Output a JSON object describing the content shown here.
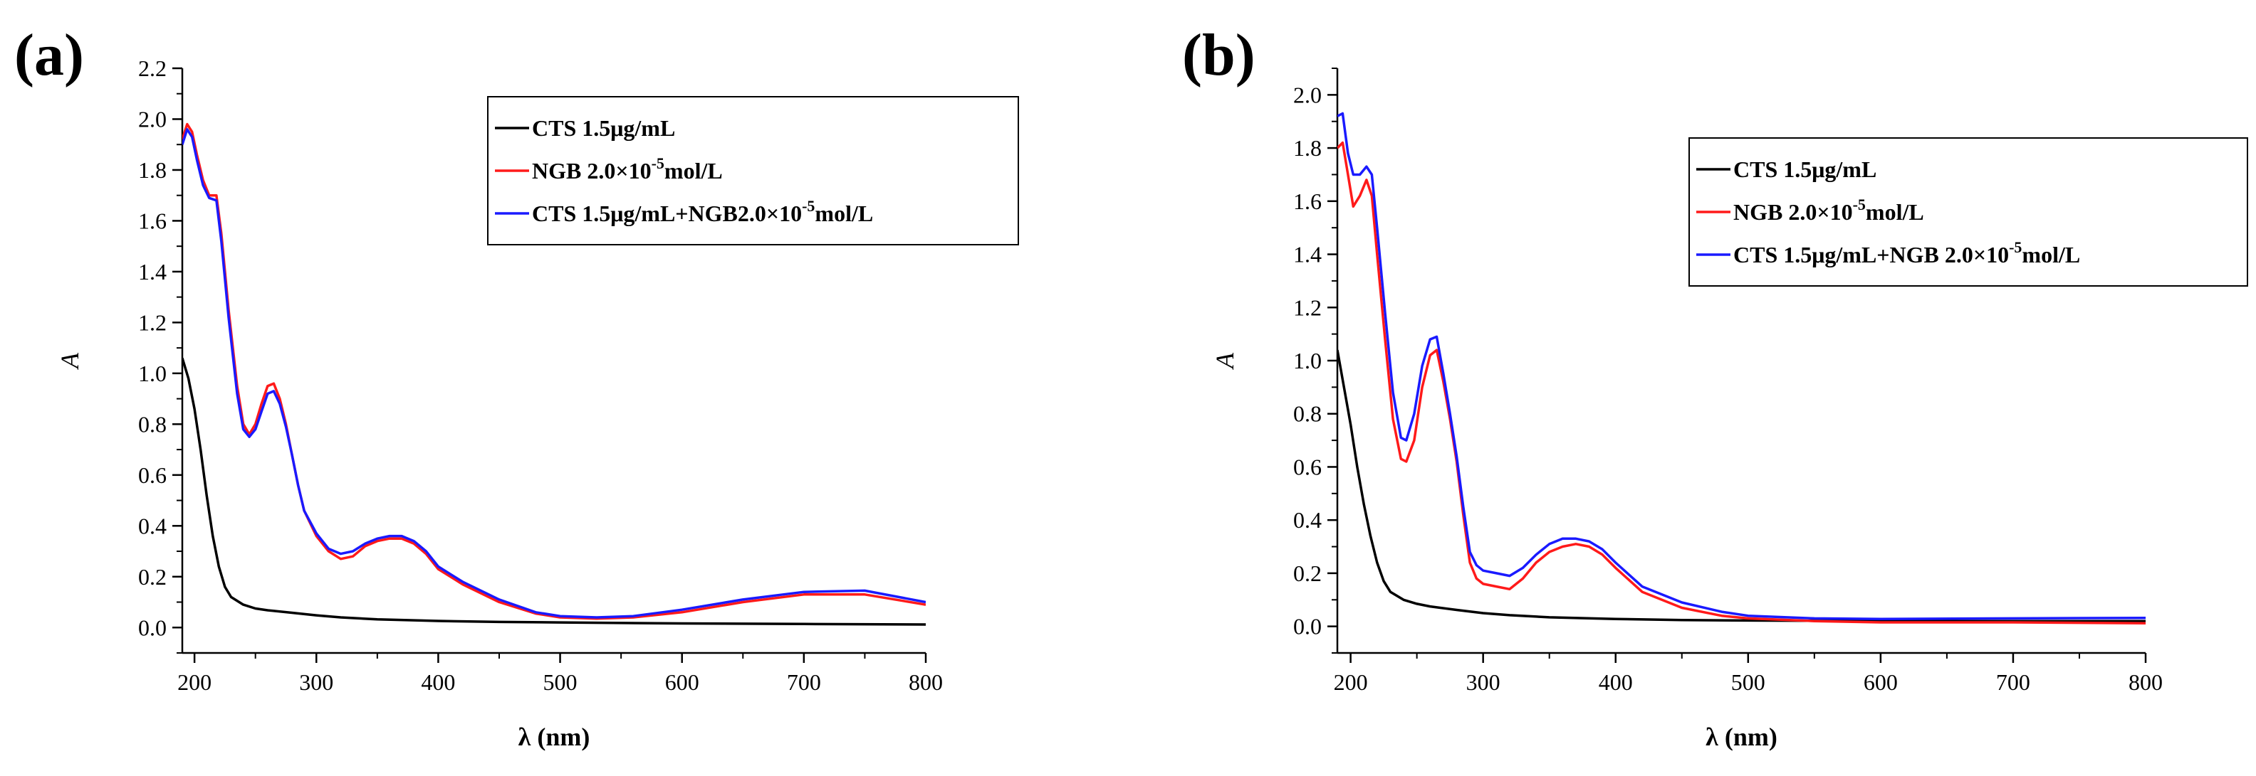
{
  "chart_data": [
    {
      "type": "line",
      "panel_label": "(a)",
      "xlabel": "λ (nm)",
      "ylabel": "A",
      "xlim": [
        190,
        800
      ],
      "ylim": [
        -0.1,
        2.2
      ],
      "x_ticks": [
        200,
        300,
        400,
        500,
        600,
        700,
        800
      ],
      "x_tick_labels": [
        "200",
        "300",
        "400",
        "500",
        "600",
        "700",
        "800"
      ],
      "y_ticks": [
        0.0,
        0.2,
        0.4,
        0.6,
        0.8,
        1.0,
        1.2,
        1.4,
        1.6,
        1.8,
        2.0,
        2.2
      ],
      "y_tick_labels": [
        "0.0",
        "0.2",
        "0.4",
        "0.6",
        "0.8",
        "1.0",
        "1.2",
        "1.4",
        "1.6",
        "1.8",
        "2.0",
        "2.2"
      ],
      "legend": {
        "placement": "top-right",
        "entries": [
          {
            "series": 0,
            "parts": [
              {
                "t": "CTS 1.5μg/mL",
                "sup": false
              }
            ]
          },
          {
            "series": 1,
            "parts": [
              {
                "t": "NGB 2.0×10",
                "sup": false
              },
              {
                "t": "-5",
                "sup": true
              },
              {
                "t": "mol/L",
                "sup": false
              }
            ]
          },
          {
            "series": 2,
            "parts": [
              {
                "t": "CTS 1.5μg/mL+NGB2.0×10",
                "sup": false
              },
              {
                "t": "-5",
                "sup": true
              },
              {
                "t": "mol/L",
                "sup": false
              }
            ]
          }
        ]
      },
      "series": [
        {
          "name": "CTS 1.5μg/mL",
          "color": "#000000",
          "x": [
            190,
            195,
            200,
            205,
            210,
            215,
            220,
            225,
            230,
            240,
            250,
            260,
            280,
            300,
            320,
            350,
            400,
            450,
            500,
            600,
            700,
            800
          ],
          "y": [
            1.06,
            0.98,
            0.86,
            0.7,
            0.52,
            0.36,
            0.24,
            0.16,
            0.12,
            0.09,
            0.075,
            0.068,
            0.058,
            0.048,
            0.04,
            0.032,
            0.026,
            0.022,
            0.02,
            0.016,
            0.014,
            0.012
          ]
        },
        {
          "name": "NGB 2.0×10-5mol/L",
          "color": "#ff1a1a",
          "x": [
            190,
            194,
            198,
            202,
            207,
            212,
            218,
            222,
            228,
            235,
            240,
            245,
            250,
            255,
            260,
            265,
            270,
            275,
            280,
            285,
            290,
            300,
            310,
            320,
            330,
            340,
            350,
            360,
            370,
            380,
            390,
            400,
            420,
            450,
            480,
            500,
            530,
            560,
            600,
            650,
            700,
            750,
            800
          ],
          "y": [
            1.92,
            1.98,
            1.95,
            1.86,
            1.76,
            1.7,
            1.7,
            1.55,
            1.25,
            0.95,
            0.8,
            0.76,
            0.8,
            0.88,
            0.95,
            0.96,
            0.9,
            0.8,
            0.68,
            0.56,
            0.46,
            0.36,
            0.3,
            0.27,
            0.28,
            0.32,
            0.34,
            0.35,
            0.35,
            0.33,
            0.29,
            0.23,
            0.17,
            0.1,
            0.055,
            0.04,
            0.035,
            0.04,
            0.06,
            0.1,
            0.13,
            0.13,
            0.09
          ]
        },
        {
          "name": "CTS 1.5μg/mL+NGB2.0×10-5mol/L",
          "color": "#1a1aff",
          "x": [
            190,
            194,
            198,
            202,
            207,
            212,
            218,
            222,
            228,
            235,
            240,
            245,
            250,
            255,
            260,
            265,
            270,
            275,
            280,
            285,
            290,
            300,
            310,
            320,
            330,
            340,
            350,
            360,
            370,
            380,
            390,
            400,
            420,
            450,
            480,
            500,
            530,
            560,
            600,
            650,
            700,
            750,
            800
          ],
          "y": [
            1.9,
            1.96,
            1.93,
            1.84,
            1.74,
            1.69,
            1.68,
            1.52,
            1.22,
            0.92,
            0.78,
            0.75,
            0.78,
            0.85,
            0.92,
            0.93,
            0.88,
            0.79,
            0.68,
            0.56,
            0.46,
            0.37,
            0.31,
            0.29,
            0.3,
            0.33,
            0.35,
            0.36,
            0.36,
            0.34,
            0.3,
            0.24,
            0.18,
            0.11,
            0.06,
            0.045,
            0.04,
            0.045,
            0.07,
            0.11,
            0.14,
            0.145,
            0.1
          ]
        }
      ]
    },
    {
      "type": "line",
      "panel_label": "(b)",
      "xlabel": "λ (nm)",
      "ylabel": "A",
      "xlim": [
        190,
        800
      ],
      "ylim": [
        -0.1,
        2.1
      ],
      "x_ticks": [
        200,
        300,
        400,
        500,
        600,
        700,
        800
      ],
      "x_tick_labels": [
        "200",
        "300",
        "400",
        "500",
        "600",
        "700",
        "800"
      ],
      "y_ticks": [
        0.0,
        0.2,
        0.4,
        0.6,
        0.8,
        1.0,
        1.2,
        1.4,
        1.6,
        1.8,
        2.0
      ],
      "y_tick_labels": [
        "0.0",
        "0.2",
        "0.4",
        "0.6",
        "0.8",
        "1.0",
        "1.2",
        "1.4",
        "1.6",
        "1.8",
        "2.0"
      ],
      "legend": {
        "placement": "top-right",
        "entries": [
          {
            "series": 0,
            "parts": [
              {
                "t": "CTS 1.5μg/mL",
                "sup": false
              }
            ]
          },
          {
            "series": 1,
            "parts": [
              {
                "t": "NGB 2.0×10",
                "sup": false
              },
              {
                "t": "-5",
                "sup": true
              },
              {
                "t": "mol/L",
                "sup": false
              }
            ]
          },
          {
            "series": 2,
            "parts": [
              {
                "t": "CTS 1.5μg/mL+NGB 2.0×10",
                "sup": false
              },
              {
                "t": "-5",
                "sup": true
              },
              {
                "t": "mol/L",
                "sup": false
              }
            ]
          }
        ]
      },
      "series": [
        {
          "name": "CTS 1.5μg/mL",
          "color": "#000000",
          "x": [
            190,
            195,
            200,
            205,
            210,
            215,
            220,
            225,
            230,
            240,
            250,
            260,
            280,
            300,
            320,
            350,
            400,
            450,
            500,
            600,
            700,
            800
          ],
          "y": [
            1.04,
            0.9,
            0.76,
            0.6,
            0.46,
            0.34,
            0.24,
            0.17,
            0.13,
            0.1,
            0.085,
            0.075,
            0.062,
            0.05,
            0.042,
            0.034,
            0.028,
            0.024,
            0.022,
            0.02,
            0.02,
            0.02
          ]
        },
        {
          "name": "NGB 2.0×10-5mol/L",
          "color": "#ff1a1a",
          "x": [
            190,
            194,
            198,
            202,
            207,
            212,
            216,
            220,
            226,
            232,
            238,
            242,
            248,
            254,
            260,
            265,
            270,
            275,
            280,
            285,
            290,
            295,
            300,
            310,
            320,
            330,
            340,
            350,
            360,
            370,
            380,
            390,
            400,
            420,
            450,
            480,
            500,
            550,
            600,
            700,
            800
          ],
          "y": [
            1.8,
            1.82,
            1.7,
            1.58,
            1.62,
            1.68,
            1.62,
            1.4,
            1.08,
            0.78,
            0.63,
            0.62,
            0.7,
            0.9,
            1.02,
            1.04,
            0.92,
            0.78,
            0.62,
            0.42,
            0.24,
            0.18,
            0.16,
            0.15,
            0.14,
            0.18,
            0.24,
            0.28,
            0.3,
            0.31,
            0.3,
            0.27,
            0.22,
            0.13,
            0.07,
            0.04,
            0.03,
            0.02,
            0.015,
            0.015,
            0.012
          ]
        },
        {
          "name": "CTS 1.5μg/mL+NGB 2.0×10-5mol/L",
          "color": "#1a1aff",
          "x": [
            190,
            194,
            198,
            202,
            207,
            212,
            216,
            220,
            226,
            232,
            238,
            242,
            248,
            254,
            260,
            265,
            270,
            275,
            280,
            285,
            290,
            295,
            300,
            310,
            320,
            330,
            340,
            350,
            360,
            370,
            380,
            390,
            400,
            420,
            450,
            480,
            500,
            550,
            600,
            700,
            800
          ],
          "y": [
            1.92,
            1.93,
            1.78,
            1.7,
            1.7,
            1.73,
            1.7,
            1.5,
            1.18,
            0.88,
            0.71,
            0.7,
            0.8,
            0.98,
            1.08,
            1.09,
            0.95,
            0.8,
            0.64,
            0.45,
            0.28,
            0.23,
            0.21,
            0.2,
            0.19,
            0.22,
            0.27,
            0.31,
            0.33,
            0.33,
            0.32,
            0.29,
            0.24,
            0.15,
            0.09,
            0.055,
            0.04,
            0.03,
            0.028,
            0.03,
            0.032
          ]
        }
      ]
    }
  ]
}
